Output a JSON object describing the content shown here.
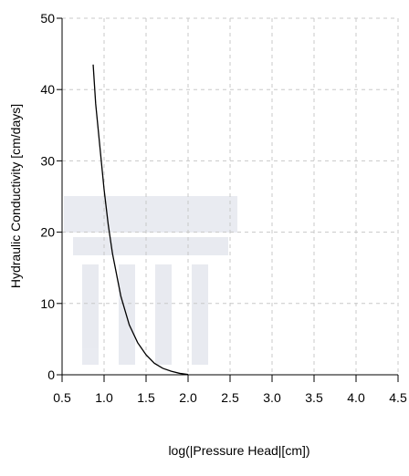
{
  "chart_data": {
    "type": "line",
    "xlabel": "log(|Pressure Head|[cm])",
    "ylabel": "Hydraulic Conductivity [cm/days]",
    "x": [
      0.87,
      0.9,
      0.95,
      1.0,
      1.05,
      1.1,
      1.2,
      1.3,
      1.4,
      1.5,
      1.6,
      1.7,
      1.8,
      1.9,
      2.0
    ],
    "series": [
      {
        "color": "#000000",
        "values": [
          43.5,
          38,
          32,
          26,
          21,
          17,
          11,
          7,
          4.5,
          2.8,
          1.6,
          0.9,
          0.5,
          0.2,
          0.05
        ]
      }
    ],
    "xlim": [
      0.5,
      4.5
    ],
    "xticks": [
      0.5,
      {
        "value": 1,
        "label": "1.0"
      },
      1.5,
      {
        "value": 2,
        "label": "2.0"
      },
      2.5,
      {
        "value": 3,
        "label": "3.0"
      },
      3.5,
      {
        "value": 4,
        "label": "4.0"
      },
      4.5
    ],
    "ylim": [
      0,
      50
    ],
    "yticks": [
      0,
      10,
      20,
      30,
      40,
      50
    ],
    "grid": true
  }
}
